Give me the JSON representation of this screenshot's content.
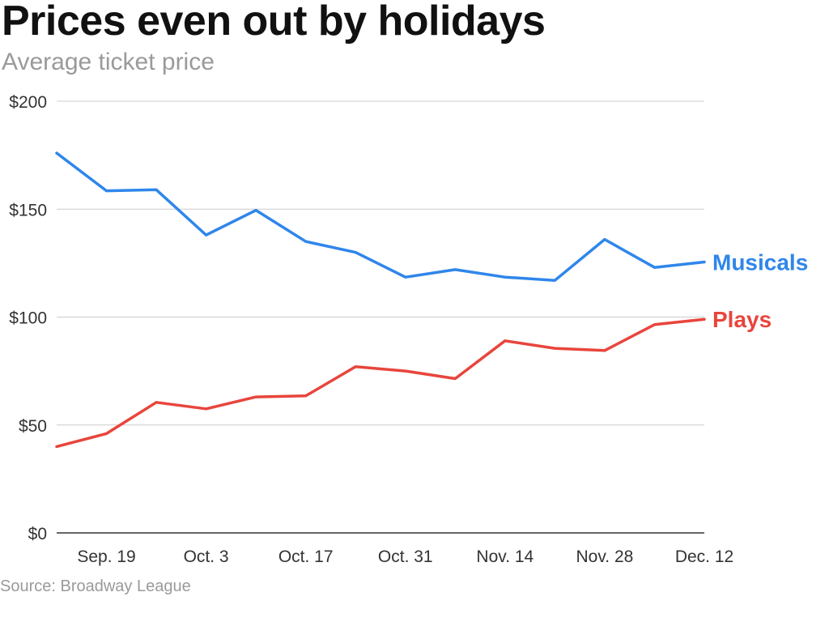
{
  "header": {
    "title": "Prices even out by holidays",
    "subtitle": "Average ticket price"
  },
  "footer": {
    "source": "Source: Broadway League"
  },
  "colors": {
    "musicals": "#2f86eb",
    "plays": "#e8453c",
    "grid": "#cccccc",
    "axis": "#333333"
  },
  "chart_data": {
    "type": "line",
    "title": "Prices even out by holidays",
    "subtitle": "Average ticket price",
    "xlabel": "",
    "ylabel": "",
    "x_tick_labels": [
      "Sep. 19",
      "Oct. 3",
      "Oct. 17",
      "Oct. 31",
      "Nov. 14",
      "Nov. 28",
      "Dec. 12"
    ],
    "y_tick_labels": [
      "$0",
      "$50",
      "$100",
      "$150",
      "$200"
    ],
    "y_ticks": [
      0,
      50,
      100,
      150,
      200
    ],
    "ylim": [
      0,
      200
    ],
    "grid": true,
    "legend": "direct labels at right end of lines",
    "x": [
      "Sep. 12",
      "Sep. 19",
      "Sep. 26",
      "Oct. 3",
      "Oct. 10",
      "Oct. 17",
      "Oct. 24",
      "Oct. 31",
      "Nov. 7",
      "Nov. 14",
      "Nov. 21",
      "Nov. 28",
      "Dec. 5",
      "Dec. 12"
    ],
    "series": [
      {
        "name": "Musicals",
        "values": [
          176,
          158.5,
          159,
          138,
          149.5,
          135,
          130,
          118.5,
          122,
          118.5,
          117,
          136,
          123,
          125.5
        ]
      },
      {
        "name": "Plays",
        "values": [
          40,
          46,
          60.5,
          57.5,
          63,
          63.5,
          77,
          75,
          71.5,
          89,
          85.5,
          84.5,
          96.5,
          99
        ]
      }
    ]
  }
}
